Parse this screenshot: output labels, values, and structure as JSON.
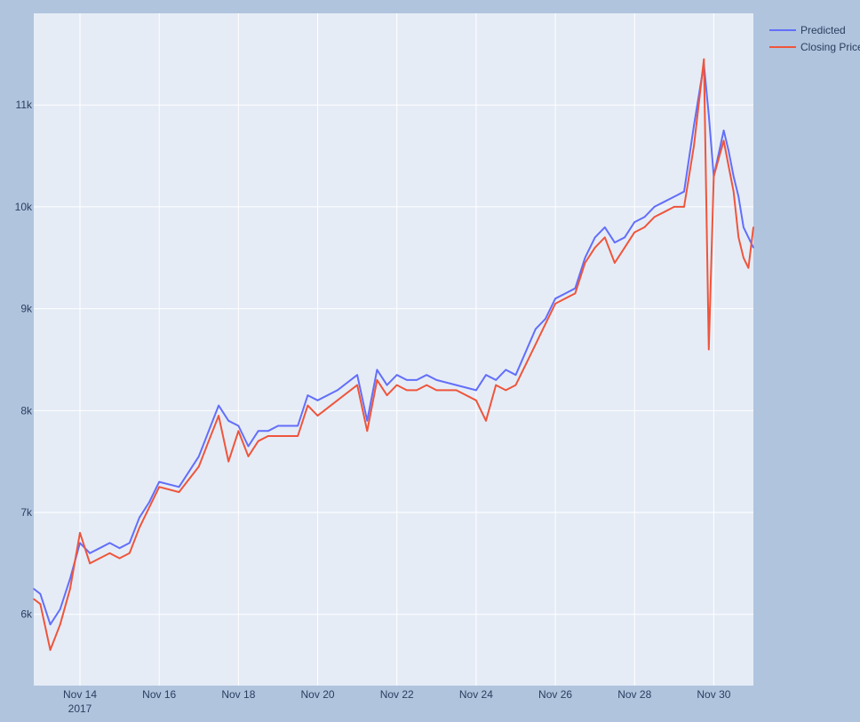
{
  "chart_data": {
    "type": "line",
    "title": "",
    "xlabel": "",
    "ylabel": "",
    "x_range": [
      "2017-11-12T20:00",
      "2017-12-01T00:00"
    ],
    "ylim": [
      5300,
      11900
    ],
    "grid": true,
    "legend_position": "top-right",
    "x_ticks": [
      {
        "label": "Nov 14",
        "sublabel": "2017",
        "date": "2017-11-14"
      },
      {
        "label": "Nov 16",
        "sublabel": "",
        "date": "2017-11-16"
      },
      {
        "label": "Nov 18",
        "sublabel": "",
        "date": "2017-11-18"
      },
      {
        "label": "Nov 20",
        "sublabel": "",
        "date": "2017-11-20"
      },
      {
        "label": "Nov 22",
        "sublabel": "",
        "date": "2017-11-22"
      },
      {
        "label": "Nov 24",
        "sublabel": "",
        "date": "2017-11-24"
      },
      {
        "label": "Nov 26",
        "sublabel": "",
        "date": "2017-11-26"
      },
      {
        "label": "Nov 28",
        "sublabel": "",
        "date": "2017-11-28"
      },
      {
        "label": "Nov 30",
        "sublabel": "",
        "date": "2017-11-30"
      }
    ],
    "y_ticks": [
      {
        "label": "6k",
        "value": 6000
      },
      {
        "label": "7k",
        "value": 7000
      },
      {
        "label": "8k",
        "value": 8000
      },
      {
        "label": "9k",
        "value": 9000
      },
      {
        "label": "10k",
        "value": 10000
      },
      {
        "label": "11k",
        "value": 11000
      }
    ],
    "series": [
      {
        "name": "Predicted",
        "color": "#636efa",
        "x": [
          "2017-11-12T20:00",
          "2017-11-13T00:00",
          "2017-11-13T06:00",
          "2017-11-13T12:00",
          "2017-11-13T18:00",
          "2017-11-14T00:00",
          "2017-11-14T06:00",
          "2017-11-14T12:00",
          "2017-11-14T18:00",
          "2017-11-15T00:00",
          "2017-11-15T06:00",
          "2017-11-15T12:00",
          "2017-11-15T18:00",
          "2017-11-16T00:00",
          "2017-11-16T12:00",
          "2017-11-17T00:00",
          "2017-11-17T06:00",
          "2017-11-17T12:00",
          "2017-11-17T18:00",
          "2017-11-18T00:00",
          "2017-11-18T06:00",
          "2017-11-18T12:00",
          "2017-11-18T18:00",
          "2017-11-19T00:00",
          "2017-11-19T12:00",
          "2017-11-19T18:00",
          "2017-11-20T00:00",
          "2017-11-20T12:00",
          "2017-11-21T00:00",
          "2017-11-21T06:00",
          "2017-11-21T12:00",
          "2017-11-21T18:00",
          "2017-11-22T00:00",
          "2017-11-22T06:00",
          "2017-11-22T12:00",
          "2017-11-22T18:00",
          "2017-11-23T00:00",
          "2017-11-23T12:00",
          "2017-11-24T00:00",
          "2017-11-24T06:00",
          "2017-11-24T12:00",
          "2017-11-24T18:00",
          "2017-11-25T00:00",
          "2017-11-25T12:00",
          "2017-11-25T18:00",
          "2017-11-26T00:00",
          "2017-11-26T12:00",
          "2017-11-26T18:00",
          "2017-11-27T00:00",
          "2017-11-27T06:00",
          "2017-11-27T12:00",
          "2017-11-27T18:00",
          "2017-11-28T00:00",
          "2017-11-28T06:00",
          "2017-11-28T12:00",
          "2017-11-28T18:00",
          "2017-11-29T00:00",
          "2017-11-29T06:00",
          "2017-11-29T12:00",
          "2017-11-29T18:00",
          "2017-11-29T21:00",
          "2017-11-30T00:00",
          "2017-11-30T06:00",
          "2017-11-30T09:00",
          "2017-11-30T12:00",
          "2017-11-30T15:00",
          "2017-11-30T18:00",
          "2017-11-30T21:00",
          "2017-12-01T00:00"
        ],
        "y": [
          6250,
          6200,
          5900,
          6050,
          6350,
          6700,
          6600,
          6650,
          6700,
          6650,
          6700,
          6950,
          7100,
          7300,
          7250,
          7550,
          7800,
          8050,
          7900,
          7850,
          7650,
          7800,
          7800,
          7850,
          7850,
          8150,
          8100,
          8200,
          8350,
          7900,
          8400,
          8250,
          8350,
          8300,
          8300,
          8350,
          8300,
          8250,
          8200,
          8350,
          8300,
          8400,
          8350,
          8800,
          8900,
          9100,
          9200,
          9500,
          9700,
          9800,
          9650,
          9700,
          9850,
          9900,
          10000,
          10050,
          10100,
          10150,
          10800,
          11400,
          10900,
          10300,
          10750,
          10550,
          10300,
          10100,
          9800,
          9700,
          9600
        ]
      },
      {
        "name": "Closing Price",
        "color": "#ef553b",
        "x": [
          "2017-11-12T20:00",
          "2017-11-13T00:00",
          "2017-11-13T06:00",
          "2017-11-13T12:00",
          "2017-11-13T18:00",
          "2017-11-14T00:00",
          "2017-11-14T06:00",
          "2017-11-14T12:00",
          "2017-11-14T18:00",
          "2017-11-15T00:00",
          "2017-11-15T06:00",
          "2017-11-15T12:00",
          "2017-11-15T18:00",
          "2017-11-16T00:00",
          "2017-11-16T12:00",
          "2017-11-17T00:00",
          "2017-11-17T06:00",
          "2017-11-17T12:00",
          "2017-11-17T18:00",
          "2017-11-18T00:00",
          "2017-11-18T06:00",
          "2017-11-18T12:00",
          "2017-11-18T18:00",
          "2017-11-19T00:00",
          "2017-11-19T12:00",
          "2017-11-19T18:00",
          "2017-11-20T00:00",
          "2017-11-20T12:00",
          "2017-11-21T00:00",
          "2017-11-21T06:00",
          "2017-11-21T12:00",
          "2017-11-21T18:00",
          "2017-11-22T00:00",
          "2017-11-22T06:00",
          "2017-11-22T12:00",
          "2017-11-22T18:00",
          "2017-11-23T00:00",
          "2017-11-23T12:00",
          "2017-11-24T00:00",
          "2017-11-24T06:00",
          "2017-11-24T12:00",
          "2017-11-24T18:00",
          "2017-11-25T00:00",
          "2017-11-25T12:00",
          "2017-11-25T18:00",
          "2017-11-26T00:00",
          "2017-11-26T12:00",
          "2017-11-26T18:00",
          "2017-11-27T00:00",
          "2017-11-27T06:00",
          "2017-11-27T12:00",
          "2017-11-27T18:00",
          "2017-11-28T00:00",
          "2017-11-28T06:00",
          "2017-11-28T12:00",
          "2017-11-28T18:00",
          "2017-11-29T00:00",
          "2017-11-29T06:00",
          "2017-11-29T12:00",
          "2017-11-29T18:00",
          "2017-11-29T21:00",
          "2017-11-30T00:00",
          "2017-11-30T06:00",
          "2017-11-30T09:00",
          "2017-11-30T12:00",
          "2017-11-30T15:00",
          "2017-11-30T18:00",
          "2017-11-30T21:00",
          "2017-12-01T00:00"
        ],
        "y": [
          6150,
          6100,
          5650,
          5900,
          6250,
          6800,
          6500,
          6550,
          6600,
          6550,
          6600,
          6850,
          7050,
          7250,
          7200,
          7450,
          7700,
          7950,
          7500,
          7800,
          7550,
          7700,
          7750,
          7750,
          7750,
          8050,
          7950,
          8100,
          8250,
          7800,
          8300,
          8150,
          8250,
          8200,
          8200,
          8250,
          8200,
          8200,
          8100,
          7900,
          8250,
          8200,
          8250,
          8650,
          8850,
          9050,
          9150,
          9450,
          9600,
          9700,
          9450,
          9600,
          9750,
          9800,
          9900,
          9950,
          10000,
          10000,
          10600,
          11450,
          8600,
          10300,
          10650,
          10400,
          10150,
          9700,
          9500,
          9400,
          9800
        ]
      }
    ]
  }
}
